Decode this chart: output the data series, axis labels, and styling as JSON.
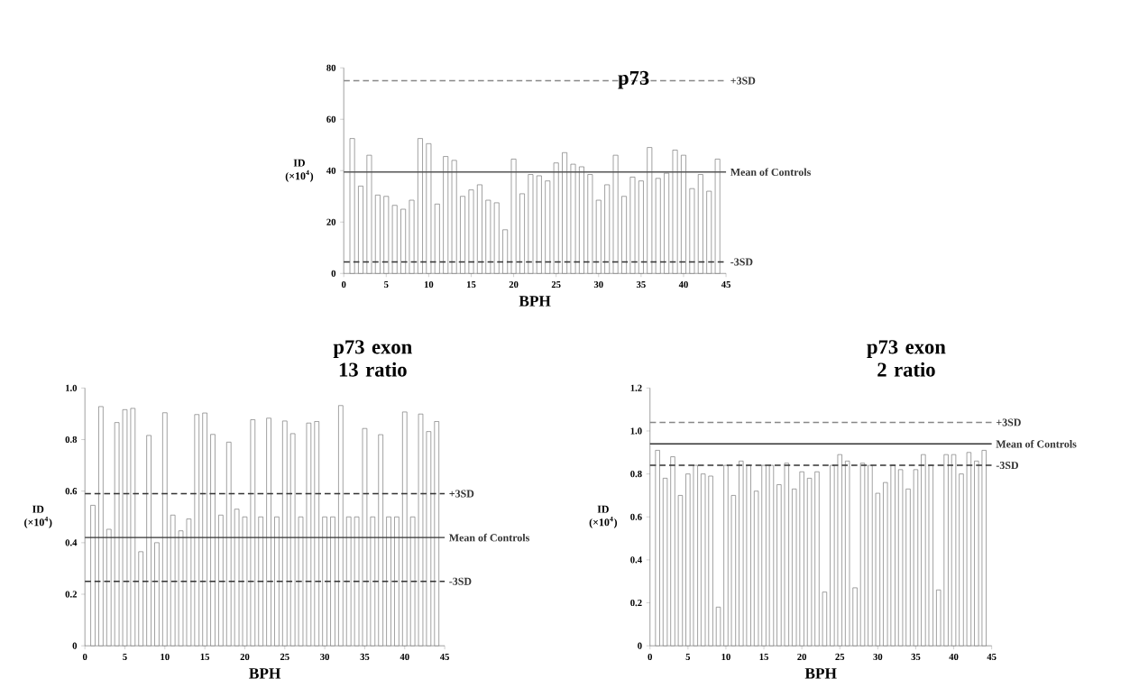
{
  "chart_data": [
    {
      "type": "bar",
      "title": "p73",
      "xlabel": "BPH",
      "ylabel": "ID (×10$^{4}$)",
      "color": "#ffffff",
      "x": [
        1,
        2,
        3,
        4,
        5,
        6,
        7,
        8,
        9,
        10,
        11,
        12,
        13,
        14,
        15,
        16,
        17,
        18,
        19,
        20,
        21,
        22,
        23,
        24,
        25,
        26,
        27,
        28,
        29,
        30,
        31,
        32,
        33,
        34,
        35,
        36,
        37,
        38,
        39,
        40,
        41,
        42,
        43,
        44
      ],
      "values": [
        52.5,
        34,
        46,
        30.5,
        30,
        26.5,
        25,
        28.5,
        52.5,
        50.5,
        27,
        45.5,
        44,
        30,
        32.5,
        34.5,
        28.5,
        27.5,
        17,
        44.5,
        31,
        38.5,
        38,
        36,
        43,
        47,
        42.5,
        41.5,
        38.5,
        28.5,
        34.5,
        46,
        30,
        37.5,
        36,
        49,
        37,
        39,
        48,
        46,
        33,
        38.5,
        32,
        44.5
      ],
      "xlim": [
        0,
        45
      ],
      "xticks": [
        0,
        5,
        10,
        15,
        20,
        25,
        30,
        35,
        40,
        45
      ],
      "ylim": [
        0,
        80
      ],
      "yticks": [
        0,
        20,
        40,
        60,
        80
      ],
      "ref_lines": [
        {
          "axis": "y",
          "value": 75,
          "label": "+3SD",
          "line_style": "dashed",
          "color": "#888888"
        },
        {
          "axis": "y",
          "value": 39.5,
          "label": "Mean of Controls",
          "line_style": "solid",
          "color": "#555555"
        },
        {
          "axis": "y",
          "value": 4.5,
          "label": "-3SD",
          "line_style": "dashed",
          "color": "#333333"
        }
      ]
    },
    {
      "type": "bar",
      "title": "p73 exon 13 ratio",
      "xlabel": "BPH",
      "ylabel": "ID (×10$^{4}$)",
      "color": "#ffffff",
      "x": [
        1,
        2,
        3,
        4,
        5,
        6,
        7,
        8,
        9,
        10,
        11,
        12,
        13,
        14,
        15,
        16,
        17,
        18,
        19,
        20,
        21,
        22,
        23,
        24,
        25,
        26,
        27,
        28,
        29,
        30,
        31,
        32,
        33,
        34,
        35,
        36,
        37,
        38,
        39,
        40,
        41,
        42,
        43,
        44
      ],
      "values": [
        0.545,
        0.928,
        0.452,
        0.866,
        0.916,
        0.921,
        0.365,
        0.816,
        0.4,
        0.904,
        0.507,
        0.446,
        0.492,
        0.897,
        0.903,
        0.82,
        0.507,
        0.79,
        0.53,
        0.5,
        0.877,
        0.5,
        0.883,
        0.5,
        0.872,
        0.823,
        0.5,
        0.864,
        0.87,
        0.5,
        0.5,
        0.932,
        0.5,
        0.5,
        0.843,
        0.5,
        0.819,
        0.5,
        0.5,
        0.907,
        0.5,
        0.899,
        0.831,
        0.87
      ],
      "xlim": [
        0,
        45
      ],
      "xticks": [
        0,
        5,
        10,
        15,
        20,
        25,
        30,
        35,
        40,
        45
      ],
      "ylim": [
        0,
        1
      ],
      "yticks": [
        0,
        0.2,
        0.4,
        0.6,
        0.8,
        {
          "value": 1,
          "label": "1.0"
        }
      ],
      "ref_lines": [
        {
          "axis": "y",
          "value": 0.59,
          "label": "+3SD",
          "line_style": "dashed",
          "color": "#333333"
        },
        {
          "axis": "y",
          "value": 0.42,
          "label": "Mean of Controls",
          "line_style": "solid",
          "color": "#333333"
        },
        {
          "axis": "y",
          "value": 0.25,
          "label": "-3SD",
          "line_style": "dashed",
          "color": "#333333"
        }
      ]
    },
    {
      "type": "bar",
      "title": "p73 exon 2 ratio",
      "xlabel": "BPH",
      "ylabel": "ID (×10$^{4}$)",
      "color": "#ffffff",
      "x": [
        1,
        2,
        3,
        4,
        5,
        6,
        7,
        8,
        9,
        10,
        11,
        12,
        13,
        14,
        15,
        16,
        17,
        18,
        19,
        20,
        21,
        22,
        23,
        24,
        25,
        26,
        27,
        28,
        29,
        30,
        31,
        32,
        33,
        34,
        35,
        36,
        37,
        38,
        39,
        40,
        41,
        42,
        43,
        44
      ],
      "values": [
        0.91,
        0.78,
        0.88,
        0.7,
        0.8,
        0.84,
        0.8,
        0.79,
        0.18,
        0.84,
        0.7,
        0.86,
        0.84,
        0.72,
        0.84,
        0.84,
        0.75,
        0.85,
        0.73,
        0.81,
        0.78,
        0.81,
        0.25,
        0.84,
        0.89,
        0.86,
        0.27,
        0.85,
        0.84,
        0.71,
        0.76,
        0.84,
        0.82,
        0.73,
        0.82,
        0.89,
        0.84,
        0.26,
        0.89,
        0.89,
        0.8,
        0.9,
        0.86,
        0.91
      ],
      "xlim": [
        0,
        45
      ],
      "xticks": [
        0,
        5,
        10,
        15,
        20,
        25,
        30,
        35,
        40,
        45
      ],
      "ylim": [
        0,
        1.2
      ],
      "yticks": [
        0,
        0.2,
        0.4,
        0.6,
        0.8,
        {
          "value": 1,
          "label": "1.0"
        },
        1.2
      ],
      "ref_lines": [
        {
          "axis": "y",
          "value": 1.04,
          "label": "+3SD",
          "line_style": "dashed",
          "color": "#888888"
        },
        {
          "axis": "y",
          "value": 0.94,
          "label": "Mean of Controls",
          "line_style": "solid",
          "color": "#333333"
        },
        {
          "axis": "y",
          "value": 0.84,
          "label": "-3SD",
          "line_style": "dashed",
          "color": "#333333"
        }
      ]
    }
  ]
}
